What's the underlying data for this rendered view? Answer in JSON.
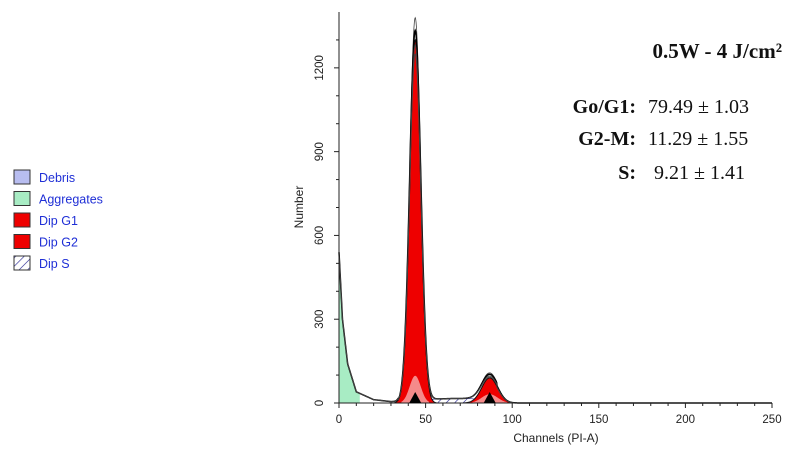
{
  "chart_data": {
    "type": "area",
    "title": "0.5W - 4 J/cm²",
    "xlabel": "Channels (PI-A)",
    "ylabel": "Number",
    "xlim": [
      0,
      250
    ],
    "ylim": [
      0,
      1400
    ],
    "x_ticks": [
      "0",
      "50",
      "100",
      "150",
      "200",
      "250"
    ],
    "y_ticks": [
      "0",
      "300",
      "600",
      "900",
      "1200"
    ],
    "grid": false,
    "legend_position": "left",
    "legend": [
      {
        "name": "Debris",
        "color": "#b8bdf0",
        "pattern": "solid"
      },
      {
        "name": "Aggregates",
        "color": "#a8ecc4",
        "pattern": "solid"
      },
      {
        "name": "Dip G1",
        "color": "#ee0000",
        "pattern": "solid"
      },
      {
        "name": "Dip G2",
        "color": "#ee0000",
        "pattern": "solid"
      },
      {
        "name": "Dip S",
        "color": "#1a1a8c",
        "pattern": "hatch"
      }
    ],
    "series": [
      {
        "name": "Dip G1",
        "peak_channel": 44,
        "peak_count": 1300,
        "sigma": 3.2
      },
      {
        "name": "Dip G2",
        "peak_channel": 87,
        "peak_count": 90,
        "sigma": 4.6
      },
      {
        "name": "Dip S",
        "x": [
          44,
          55,
          65,
          75,
          87
        ],
        "values": [
          8,
          14,
          16,
          16,
          10
        ]
      },
      {
        "name": "Debris",
        "x": [
          0,
          2,
          5,
          10,
          20,
          30
        ],
        "values": [
          540,
          300,
          140,
          40,
          12,
          5
        ]
      }
    ],
    "markers": [
      {
        "x": 44,
        "shape": "triangle"
      },
      {
        "x": 87,
        "shape": "triangle"
      }
    ],
    "annotations": [
      {
        "label": "Go/G1:",
        "value": "79.49 ± 1.03"
      },
      {
        "label": "G2-M:",
        "value": "11.29 ± 1.55"
      },
      {
        "label": "S:",
        "value": "9.21 ± 1.41"
      }
    ]
  }
}
